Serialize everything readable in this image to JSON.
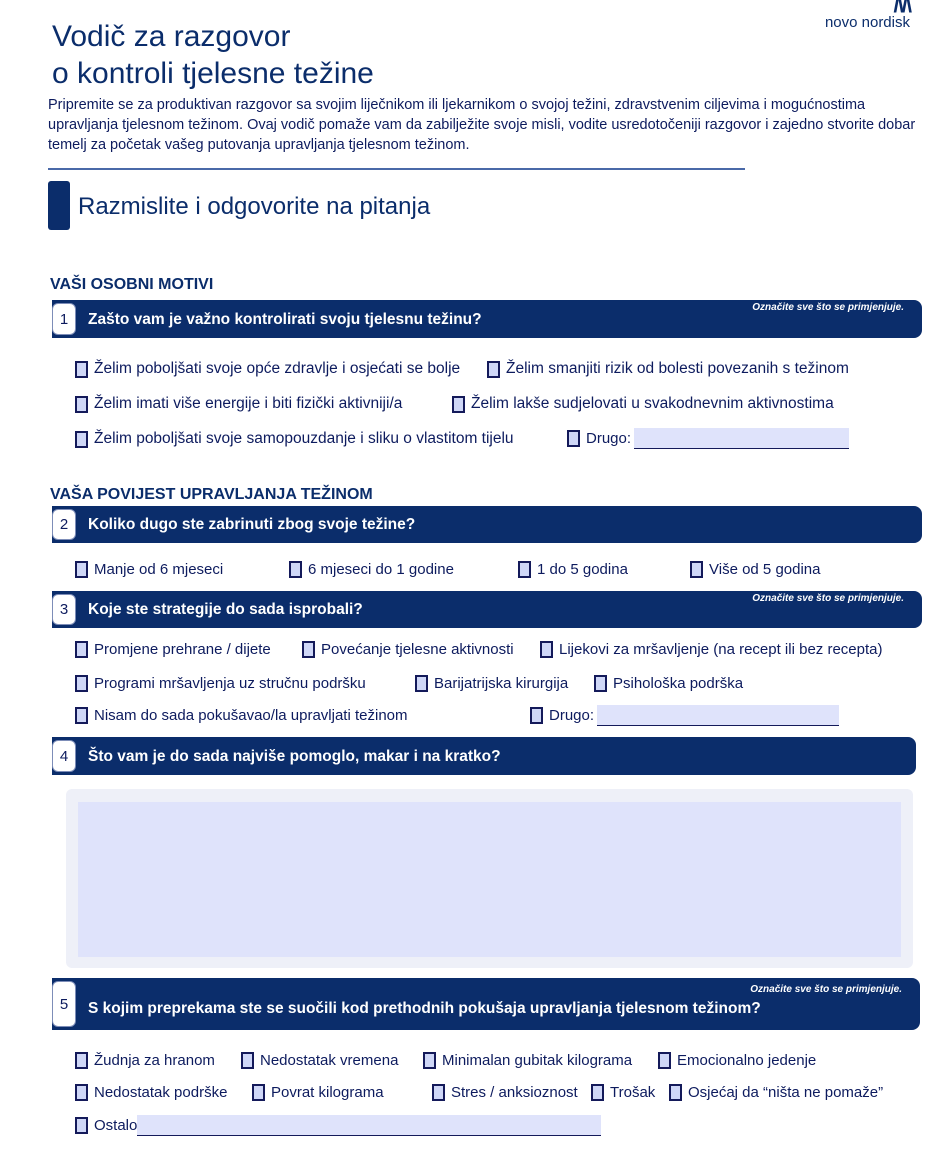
{
  "logo": {
    "text": "novo nordisk",
    "mark": "/\\/\\"
  },
  "title": {
    "line1": "Vodič za razgovor",
    "line2": "o kontroli tjelesne težine"
  },
  "intro": "Pripremite se za produktivan razgovor sa svojim liječnikom ili ljekarnikom o svojoj težini, zdravstvenim ciljevima i mogućnostima upravljanja tjelesnom težinom. Ovaj vodič pomaže vam da zabilježite svoje misli, vodite usredotočeniji razgovor i zajedno stvorite dobar temelj za početak vašeg putovanja upravljanja tjelesnom težinom.",
  "section_title": "Razmislite i odgovorite na pitanja",
  "note": "Označite sve što se primjenjuje.",
  "groups": {
    "g1": "VAŠI OSOBNI MOTIVI",
    "g2": "VAŠA POVIJEST UPRAVLJANJA TEŽINOM"
  },
  "colors": {
    "navy": "#0b2d6b",
    "checkbox_fill": "#cfd7f7",
    "field_fill": "#dfe3fb"
  },
  "q1": {
    "num": "1",
    "text": "Zašto vam je važno kontrolirati svoju tjelesnu težinu?",
    "options": [
      "Želim poboljšati svoje opće zdravlje i osjećati se bolje",
      "Želim smanjiti rizik od bolesti povezanih s težinom",
      "Želim imati više energije i biti fizički aktivniji/a",
      "Želim lakše sudjelovati u svakodnevnim aktivnostima",
      "Želim poboljšati svoje samopouzdanje i sliku o vlastitom tijelu",
      "Drugo:"
    ]
  },
  "q2": {
    "num": "2",
    "text": "Koliko dugo ste zabrinuti zbog svoje težine?",
    "options": [
      "Manje od 6 mjeseci",
      "6 mjeseci do 1 godine",
      "1 do 5 godina",
      "Više od 5 godina"
    ]
  },
  "q3": {
    "num": "3",
    "text": "Koje ste strategije do sada isprobali?",
    "options": [
      "Promjene prehrane / dijete",
      "Povećanje tjelesne aktivnosti",
      "Lijekovi za mršavljenje (na recept ili bez recepta)",
      "Programi mršavljenja uz stručnu podršku",
      "Barijatrijska kirurgija",
      "Psihološka podrška",
      "Nisam do sada pokušavao/la upravljati težinom",
      "Drugo:"
    ]
  },
  "q4": {
    "num": "4",
    "text": "Što vam je do sada najviše pomoglo, makar i na kratko?"
  },
  "q5": {
    "num": "5",
    "text": "S kojim preprekama ste se suočili kod prethodnih pokušaja upravljanja tjelesnom težinom?",
    "options": [
      "Žudnja za hranom",
      "Nedostatak vremena",
      "Minimalan gubitak kilograma",
      "Emocionalno jedenje",
      "Nedostatak podrške",
      "Povrat kilograma",
      "Stres / anksioznost",
      "Trošak",
      "Osjećaj da “ništa ne pomaže”",
      "Ostalo"
    ]
  }
}
